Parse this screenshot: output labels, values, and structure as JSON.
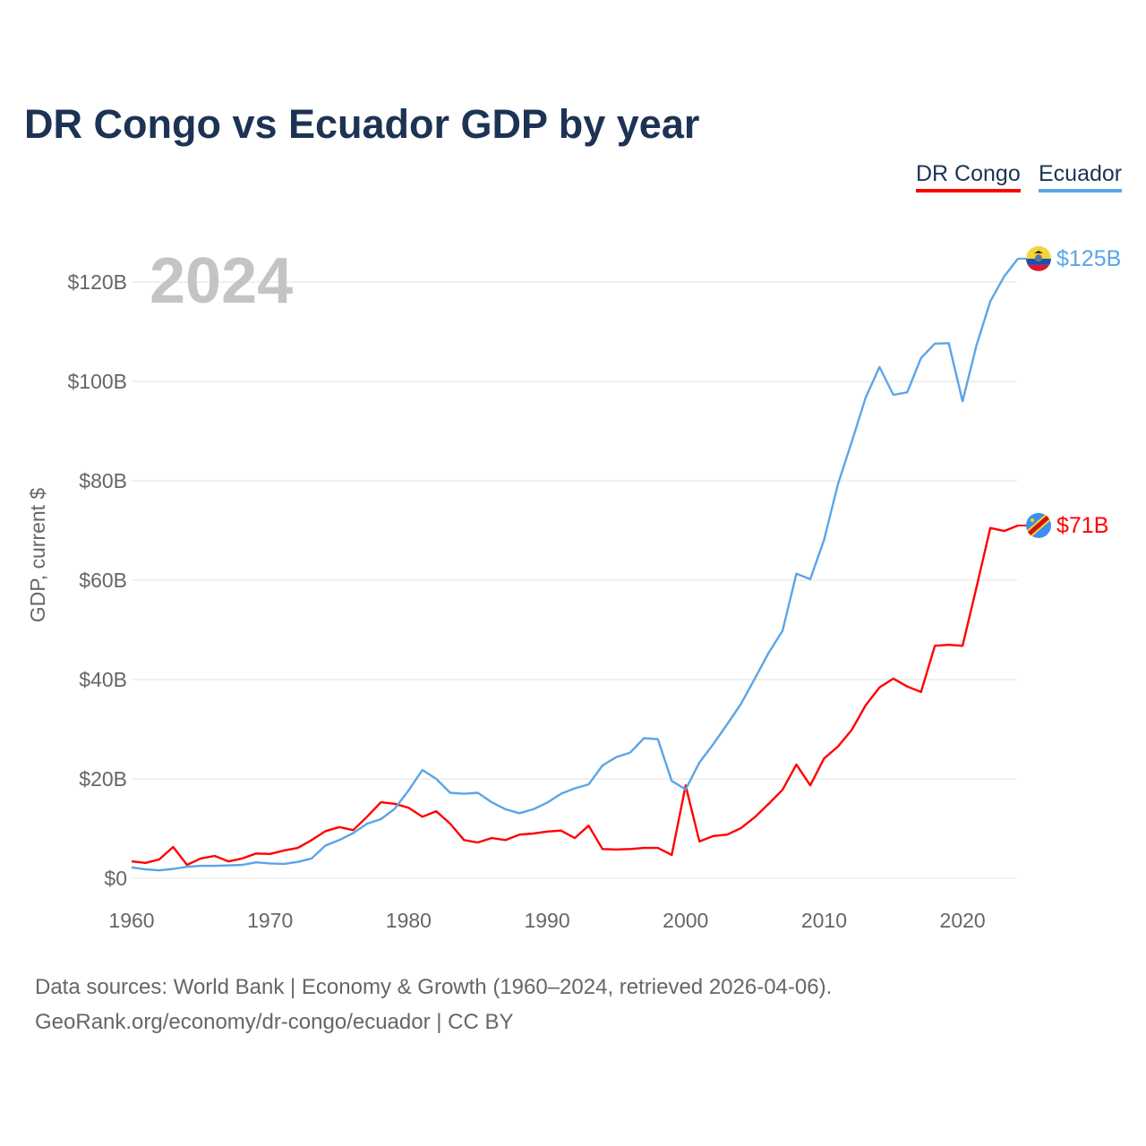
{
  "chart_data": {
    "type": "line",
    "title": "DR Congo vs Ecuador GDP by year",
    "ylabel": "GDP, current $",
    "xlabel": "",
    "xlim": [
      1960,
      2024
    ],
    "ylim": [
      0,
      125
    ],
    "grid": true,
    "legend_placement": "top-right",
    "year_watermark": "2024",
    "x_ticks": [
      "1960",
      "1970",
      "1980",
      "1990",
      "2000",
      "2010",
      "2020"
    ],
    "x_tick_values": [
      1960,
      1970,
      1980,
      1990,
      2000,
      2010,
      2020
    ],
    "y_ticks": [
      "$0",
      "$20B",
      "$40B",
      "$60B",
      "$80B",
      "$100B",
      "$120B"
    ],
    "y_tick_values": [
      0,
      20,
      40,
      60,
      80,
      100,
      120
    ],
    "x": [
      1960,
      1961,
      1962,
      1963,
      1964,
      1965,
      1966,
      1967,
      1968,
      1969,
      1970,
      1971,
      1972,
      1973,
      1974,
      1975,
      1976,
      1977,
      1978,
      1979,
      1980,
      1981,
      1982,
      1983,
      1984,
      1985,
      1986,
      1987,
      1988,
      1989,
      1990,
      1991,
      1992,
      1993,
      1994,
      1995,
      1996,
      1997,
      1998,
      1999,
      2000,
      2001,
      2002,
      2003,
      2004,
      2005,
      2006,
      2007,
      2008,
      2009,
      2010,
      2011,
      2012,
      2013,
      2014,
      2015,
      2016,
      2017,
      2018,
      2019,
      2020,
      2021,
      2022,
      2023,
      2024
    ],
    "series": [
      {
        "name": "DR Congo",
        "color": "#ff0000",
        "end_label": "$71B",
        "flag": "dr-congo-flag",
        "values": [
          3.4,
          3.1,
          3.8,
          6.3,
          2.7,
          4.0,
          4.5,
          3.4,
          4.0,
          5.0,
          4.9,
          5.6,
          6.1,
          7.7,
          9.5,
          10.3,
          9.7,
          12.4,
          15.3,
          15.0,
          14.2,
          12.4,
          13.5,
          11.0,
          7.7,
          7.2,
          8.1,
          7.7,
          8.8,
          9.0,
          9.4,
          9.6,
          8.1,
          10.6,
          5.9,
          5.8,
          5.9,
          6.1,
          6.1,
          4.7,
          18.7,
          7.4,
          8.5,
          8.8,
          10.1,
          12.3,
          15.0,
          17.8,
          22.9,
          18.7,
          24.1,
          26.5,
          29.9,
          34.8,
          38.4,
          40.2,
          38.6,
          37.5,
          46.8,
          47.0,
          46.8,
          58.5,
          70.5,
          69.9,
          71.0
        ]
      },
      {
        "name": "Ecuador",
        "color": "#5aa5e8",
        "end_label": "$125B",
        "flag": "ecuador-flag",
        "values": [
          2.2,
          1.8,
          1.6,
          1.9,
          2.3,
          2.5,
          2.5,
          2.6,
          2.7,
          3.2,
          3.0,
          2.9,
          3.3,
          4.0,
          6.6,
          7.7,
          9.1,
          11.0,
          11.9,
          14.0,
          17.7,
          21.8,
          20.0,
          17.2,
          17.0,
          17.2,
          15.3,
          13.9,
          13.1,
          13.9,
          15.2,
          17.0,
          18.1,
          18.9,
          22.7,
          24.4,
          25.3,
          28.2,
          28.0,
          19.6,
          17.9,
          23.3,
          27.0,
          31.0,
          35.1,
          40.2,
          45.4,
          49.8,
          61.3,
          60.2,
          68.1,
          79.3,
          87.9,
          96.7,
          102.9,
          97.3,
          97.8,
          104.7,
          107.6,
          107.7,
          96.0,
          107.2,
          116.1,
          121.1,
          124.7
        ]
      }
    ]
  },
  "footer": {
    "line1": "Data sources: World Bank | Economy & Growth (1960–2024, retrieved 2026-04-06).",
    "line2": "GeoRank.org/economy/dr-congo/ecuador | CC BY"
  }
}
